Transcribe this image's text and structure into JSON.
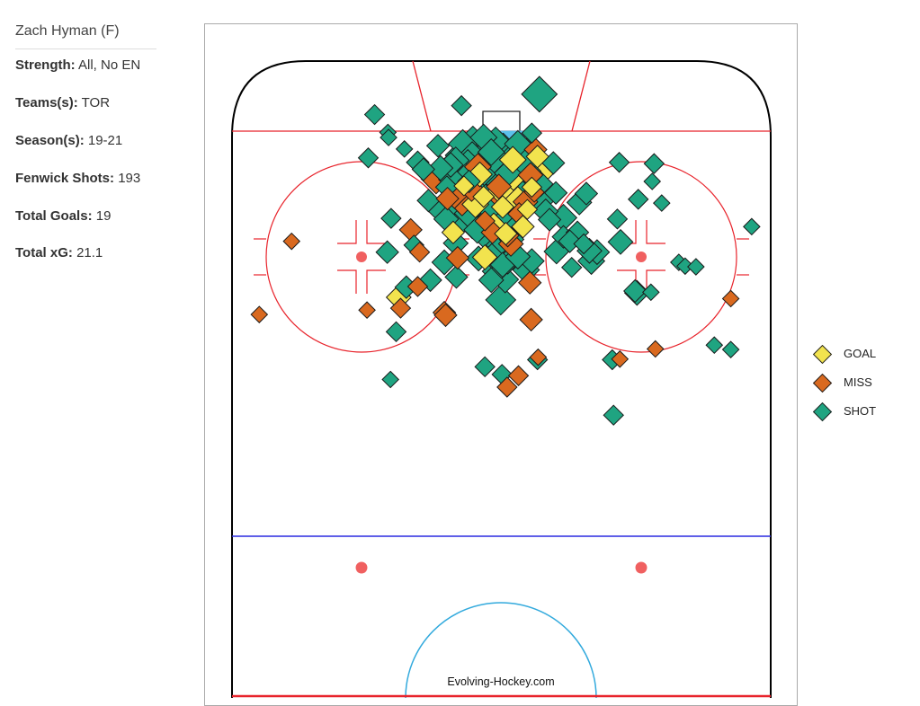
{
  "player": {
    "name": "Zach Hyman (F)"
  },
  "stats": [
    {
      "label": "Strength:",
      "value": "All, No EN"
    },
    {
      "label": "Teams(s):",
      "value": "TOR"
    },
    {
      "label": "Season(s):",
      "value": "19-21"
    },
    {
      "label": "Fenwick Shots:",
      "value": "193"
    },
    {
      "label": "Total Goals:",
      "value": "19"
    },
    {
      "label": "Total xG:",
      "value": "21.1"
    }
  ],
  "watermark": "Evolving-Hockey.com",
  "legend": [
    {
      "label": "GOAL",
      "color": "#f2e34e"
    },
    {
      "label": "MISS",
      "color": "#d9691f"
    },
    {
      "label": "SHOT",
      "color": "#1fa481"
    }
  ],
  "rink_colors": {
    "boards": "#000000",
    "goal_line": "#e8232b",
    "blue_line": "#2a2ae0",
    "crease": "#5bc0eb",
    "faceoff_dot": "#f06060",
    "center_circle": "#33aadd"
  },
  "chart_data": {
    "type": "scatter",
    "x_unit": "feet from center of rink width (-42.5 to 42.5)",
    "y_unit": "feet from end boards (0 to 100)",
    "xlim": [
      -42.5,
      42.5
    ],
    "ylim": [
      0,
      100
    ],
    "size_encodes": "expected goals",
    "series": [
      {
        "name": "GOAL",
        "points": [
          {
            "x": -2.8,
            "y": 21.3,
            "s": 0.025
          },
          {
            "x": -0.1,
            "y": 20.4,
            "s": 0.05
          },
          {
            "x": 0.2,
            "y": 22.9,
            "s": 0.03
          },
          {
            "x": 5.7,
            "y": 15.0,
            "s": 0.03
          },
          {
            "x": 6.0,
            "y": 17.4,
            "s": 0.08
          },
          {
            "x": 4.8,
            "y": 19.8,
            "s": 0.02
          },
          {
            "x": -7.6,
            "y": 26.9,
            "s": 0.03
          },
          {
            "x": -2.6,
            "y": 30.8,
            "s": 0.04
          },
          {
            "x": -16.2,
            "y": 37.1,
            "s": 0.04
          },
          {
            "x": 3.4,
            "y": 26.0,
            "s": 0.03
          },
          {
            "x": 1.4,
            "y": 18.6,
            "s": 0.06
          },
          {
            "x": -4.1,
            "y": 22.5,
            "s": 0.05
          },
          {
            "x": -1.2,
            "y": 25.8,
            "s": 0.04
          },
          {
            "x": 2.6,
            "y": 21.8,
            "s": 0.05
          },
          {
            "x": -3.4,
            "y": 17.8,
            "s": 0.04
          },
          {
            "x": 4.1,
            "y": 23.3,
            "s": 0.02
          },
          {
            "x": 0.7,
            "y": 27.1,
            "s": 0.03
          },
          {
            "x": -5.9,
            "y": 19.6,
            "s": 0.02
          },
          {
            "x": 1.8,
            "y": 15.5,
            "s": 0.05
          }
        ]
      },
      {
        "name": "MISS",
        "points": [
          {
            "x": -10.3,
            "y": 18.5,
            "s": 0.07
          },
          {
            "x": -8.5,
            "y": 21.6,
            "s": 0.03
          },
          {
            "x": -14.3,
            "y": 26.5,
            "s": 0.03
          },
          {
            "x": -12.9,
            "y": 30.0,
            "s": 0.02
          },
          {
            "x": -6.2,
            "y": 22.2,
            "s": 0.05
          },
          {
            "x": -1.4,
            "y": 26.9,
            "s": 0.03
          },
          {
            "x": 1.0,
            "y": 27.4,
            "s": 0.03
          },
          {
            "x": 1.5,
            "y": 28.7,
            "s": 0.04
          },
          {
            "x": 4.6,
            "y": 17.9,
            "s": 0.04
          },
          {
            "x": 5.4,
            "y": 13.9,
            "s": 0.03
          },
          {
            "x": 5.2,
            "y": 20.6,
            "s": 0.02
          },
          {
            "x": -2.6,
            "y": 25.1,
            "s": 0.02
          },
          {
            "x": 0.9,
            "y": 25.9,
            "s": 0.06
          },
          {
            "x": 4.5,
            "y": 34.8,
            "s": 0.03
          },
          {
            "x": -6.9,
            "y": 30.9,
            "s": 0.03
          },
          {
            "x": -13.2,
            "y": 35.4,
            "s": 0.02
          },
          {
            "x": -9.0,
            "y": 39.5,
            "s": 0.03
          },
          {
            "x": -7.4,
            "y": 21.2,
            "s": 0.04
          },
          {
            "x": -33.1,
            "y": 28.3,
            "s": 0.01
          },
          {
            "x": -38.2,
            "y": 39.8,
            "s": 0.01
          },
          {
            "x": -21.2,
            "y": 39.1,
            "s": 0.01
          },
          {
            "x": -15.9,
            "y": 38.8,
            "s": 0.02
          },
          {
            "x": -8.8,
            "y": 39.9,
            "s": 0.03
          },
          {
            "x": 5.8,
            "y": 46.5,
            "s": 0.01
          },
          {
            "x": 2.7,
            "y": 49.4,
            "s": 0.02
          },
          {
            "x": 0.9,
            "y": 51.2,
            "s": 0.02
          },
          {
            "x": 4.7,
            "y": 40.6,
            "s": 0.03
          },
          {
            "x": 18.7,
            "y": 46.8,
            "s": 0.01
          },
          {
            "x": 24.3,
            "y": 45.2,
            "s": 0.01
          },
          {
            "x": 36.2,
            "y": 37.3,
            "s": 0.01
          },
          {
            "x": -0.4,
            "y": 19.7,
            "s": 0.04
          },
          {
            "x": -3.7,
            "y": 16.6,
            "s": 0.05
          },
          {
            "x": 2.8,
            "y": 24.0,
            "s": 0.03
          },
          {
            "x": 0.1,
            "y": 21.5,
            "s": 0.05
          },
          {
            "x": -4.7,
            "y": 20.1,
            "s": 0.04
          },
          {
            "x": 3.8,
            "y": 22.1,
            "s": 0.04
          }
        ]
      },
      {
        "name": "SHOT",
        "points": [
          {
            "x": 6.0,
            "y": 5.2,
            "s": 0.11
          },
          {
            "x": -20.0,
            "y": 8.4,
            "s": 0.02
          },
          {
            "x": -6.3,
            "y": 7.0,
            "s": 0.02
          },
          {
            "x": -17.9,
            "y": 11.2,
            "s": 0.01
          },
          {
            "x": -17.8,
            "y": 12.0,
            "s": 0.01
          },
          {
            "x": -15.3,
            "y": 13.8,
            "s": 0.01
          },
          {
            "x": -2.8,
            "y": 12.0,
            "s": 0.05
          },
          {
            "x": -6.6,
            "y": 14.8,
            "s": 0.06
          },
          {
            "x": -4.5,
            "y": 12.7,
            "s": 0.08
          },
          {
            "x": -2.8,
            "y": 19.7,
            "s": 0.09
          },
          {
            "x": -1.4,
            "y": 17.9,
            "s": 0.07
          },
          {
            "x": 2.6,
            "y": 13.0,
            "s": 0.05
          },
          {
            "x": 3.2,
            "y": 15.6,
            "s": 0.06
          },
          {
            "x": -1.6,
            "y": 14.3,
            "s": 0.05
          },
          {
            "x": -5.1,
            "y": 18.9,
            "s": 0.03
          },
          {
            "x": -0.4,
            "y": 16.0,
            "s": 0.09
          },
          {
            "x": 1.0,
            "y": 17.6,
            "s": 0.05
          },
          {
            "x": -3.6,
            "y": 15.5,
            "s": 0.07
          },
          {
            "x": 0.3,
            "y": 13.8,
            "s": 0.08
          },
          {
            "x": -1.8,
            "y": 21.7,
            "s": 0.07
          },
          {
            "x": -0.6,
            "y": 20.9,
            "s": 0.1
          },
          {
            "x": 0.3,
            "y": 22.6,
            "s": 0.07
          },
          {
            "x": -13.2,
            "y": 15.9,
            "s": 0.03
          },
          {
            "x": -11.5,
            "y": 21.9,
            "s": 0.03
          },
          {
            "x": -12.3,
            "y": 17.0,
            "s": 0.03
          },
          {
            "x": -9.1,
            "y": 23.5,
            "s": 0.08
          },
          {
            "x": -4.6,
            "y": 25.4,
            "s": 0.08
          },
          {
            "x": -8.6,
            "y": 19.8,
            "s": 0.03
          },
          {
            "x": 6.2,
            "y": 21.8,
            "s": 0.06
          },
          {
            "x": 7.0,
            "y": 23.6,
            "s": 0.04
          },
          {
            "x": 8.6,
            "y": 20.7,
            "s": 0.03
          },
          {
            "x": 9.8,
            "y": 24.6,
            "s": 0.05
          },
          {
            "x": 12.3,
            "y": 22.2,
            "s": 0.04
          },
          {
            "x": 9.8,
            "y": 27.6,
            "s": 0.03
          },
          {
            "x": 12.0,
            "y": 26.9,
            "s": 0.03
          },
          {
            "x": 13.0,
            "y": 28.7,
            "s": 0.02
          },
          {
            "x": 15.1,
            "y": 30.0,
            "s": 0.04
          },
          {
            "x": 13.9,
            "y": 29.8,
            "s": 0.04
          },
          {
            "x": 14.2,
            "y": 31.4,
            "s": 0.05
          },
          {
            "x": 10.8,
            "y": 28.3,
            "s": 0.03
          },
          {
            "x": 8.7,
            "y": 29.9,
            "s": 0.04
          },
          {
            "x": 11.1,
            "y": 32.4,
            "s": 0.02
          },
          {
            "x": 18.8,
            "y": 28.4,
            "s": 0.04
          },
          {
            "x": 18.3,
            "y": 24.8,
            "s": 0.02
          },
          {
            "x": 21.6,
            "y": 21.7,
            "s": 0.02
          },
          {
            "x": 23.8,
            "y": 18.9,
            "s": 0.01
          },
          {
            "x": 18.6,
            "y": 15.9,
            "s": 0.02
          },
          {
            "x": 24.1,
            "y": 16.1,
            "s": 0.02
          },
          {
            "x": 13.4,
            "y": 20.8,
            "s": 0.03
          },
          {
            "x": 25.3,
            "y": 22.3,
            "s": 0.01
          },
          {
            "x": 28.0,
            "y": 31.6,
            "s": 0.01
          },
          {
            "x": 29.0,
            "y": 32.2,
            "s": 0.01
          },
          {
            "x": 21.4,
            "y": 36.4,
            "s": 0.04
          },
          {
            "x": 21.1,
            "y": 36.1,
            "s": 0.03
          },
          {
            "x": 23.6,
            "y": 36.3,
            "s": 0.01
          },
          {
            "x": 30.7,
            "y": 32.3,
            "s": 0.01
          },
          {
            "x": 39.5,
            "y": 26.0,
            "s": 0.01
          },
          {
            "x": 33.6,
            "y": 44.6,
            "s": 0.01
          },
          {
            "x": 36.2,
            "y": 45.3,
            "s": 0.01
          },
          {
            "x": 17.5,
            "y": 46.9,
            "s": 0.02
          },
          {
            "x": 17.7,
            "y": 55.6,
            "s": 0.02
          },
          {
            "x": 5.7,
            "y": 46.9,
            "s": 0.02
          },
          {
            "x": 0.1,
            "y": 49.2,
            "s": 0.02
          },
          {
            "x": -2.6,
            "y": 48.0,
            "s": 0.02
          },
          {
            "x": -17.5,
            "y": 50.0,
            "s": 0.01
          },
          {
            "x": -16.6,
            "y": 42.5,
            "s": 0.02
          },
          {
            "x": -7.2,
            "y": 28.6,
            "s": 0.04
          },
          {
            "x": -9.0,
            "y": 31.6,
            "s": 0.04
          },
          {
            "x": -3.6,
            "y": 31.0,
            "s": 0.04
          },
          {
            "x": -1.6,
            "y": 34.4,
            "s": 0.04
          },
          {
            "x": -7.1,
            "y": 33.9,
            "s": 0.03
          },
          {
            "x": -11.2,
            "y": 34.4,
            "s": 0.03
          },
          {
            "x": -13.8,
            "y": 28.9,
            "s": 0.02
          },
          {
            "x": -15.0,
            "y": 35.5,
            "s": 0.03
          },
          {
            "x": -18.0,
            "y": 30.0,
            "s": 0.03
          },
          {
            "x": -17.4,
            "y": 24.7,
            "s": 0.02
          },
          {
            "x": -0.1,
            "y": 37.5,
            "s": 0.07
          },
          {
            "x": 0.9,
            "y": 30.2,
            "s": 0.05
          },
          {
            "x": 1.0,
            "y": 31.5,
            "s": 0.04
          },
          {
            "x": -1.8,
            "y": 28.2,
            "s": 0.05
          },
          {
            "x": 3.9,
            "y": 32.8,
            "s": 0.05
          },
          {
            "x": 4.8,
            "y": 31.4,
            "s": 0.04
          },
          {
            "x": 7.6,
            "y": 24.9,
            "s": 0.03
          },
          {
            "x": 8.2,
            "y": 16.0,
            "s": 0.03
          },
          {
            "x": 4.8,
            "y": 11.3,
            "s": 0.02
          },
          {
            "x": -21.0,
            "y": 15.2,
            "s": 0.02
          },
          {
            "x": -8.0,
            "y": 16.3,
            "s": 0.04
          },
          {
            "x": -4.9,
            "y": 22.3,
            "s": 0.06
          },
          {
            "x": -4.0,
            "y": 19.0,
            "s": 0.08
          },
          {
            "x": -3.4,
            "y": 23.8,
            "s": 0.07
          },
          {
            "x": -2.0,
            "y": 16.5,
            "s": 0.07
          },
          {
            "x": -1.0,
            "y": 19.4,
            "s": 0.09
          },
          {
            "x": 2.0,
            "y": 18.9,
            "s": 0.08
          },
          {
            "x": 4.0,
            "y": 17.3,
            "s": 0.06
          },
          {
            "x": 4.5,
            "y": 14.0,
            "s": 0.07
          },
          {
            "x": 1.1,
            "y": 15.9,
            "s": 0.07
          },
          {
            "x": -0.9,
            "y": 12.6,
            "s": 0.06
          },
          {
            "x": -2.5,
            "y": 14.4,
            "s": 0.06
          },
          {
            "x": -5.3,
            "y": 16.0,
            "s": 0.05
          },
          {
            "x": -6.1,
            "y": 13.0,
            "s": 0.06
          },
          {
            "x": -5.6,
            "y": 18.1,
            "s": 0.05
          },
          {
            "x": -7.2,
            "y": 15.6,
            "s": 0.05
          },
          {
            "x": -9.6,
            "y": 16.8,
            "s": 0.04
          },
          {
            "x": -10.0,
            "y": 13.3,
            "s": 0.03
          },
          {
            "x": -8.7,
            "y": 24.8,
            "s": 0.04
          },
          {
            "x": -6.9,
            "y": 25.7,
            "s": 0.05
          },
          {
            "x": -2.1,
            "y": 23.5,
            "s": 0.06
          },
          {
            "x": 1.1,
            "y": 24.4,
            "s": 0.05
          },
          {
            "x": 2.4,
            "y": 20.1,
            "s": 0.06
          },
          {
            "x": 3.1,
            "y": 22.3,
            "s": 0.05
          },
          {
            "x": 2.0,
            "y": 26.3,
            "s": 0.04
          },
          {
            "x": -0.5,
            "y": 28.9,
            "s": 0.04
          },
          {
            "x": -1.5,
            "y": 30.6,
            "s": 0.04
          },
          {
            "x": 0.2,
            "y": 32.0,
            "s": 0.04
          },
          {
            "x": 0.6,
            "y": 34.3,
            "s": 0.05
          },
          {
            "x": -0.9,
            "y": 33.0,
            "s": 0.05
          },
          {
            "x": 2.6,
            "y": 30.7,
            "s": 0.04
          },
          {
            "x": 6.2,
            "y": 19.3,
            "s": 0.04
          },
          {
            "x": -3.3,
            "y": 20.9,
            "s": 0.07
          },
          {
            "x": -0.1,
            "y": 18.2,
            "s": 0.08
          },
          {
            "x": 0.8,
            "y": 16.9,
            "s": 0.07
          },
          {
            "x": 3.6,
            "y": 16.0,
            "s": 0.06
          },
          {
            "x": -4.6,
            "y": 14.9,
            "s": 0.06
          },
          {
            "x": -7.8,
            "y": 18.6,
            "s": 0.05
          },
          {
            "x": -2.7,
            "y": 17.2,
            "s": 0.07
          },
          {
            "x": -1.1,
            "y": 15.2,
            "s": 0.07
          },
          {
            "x": 1.5,
            "y": 21.2,
            "s": 0.07
          },
          {
            "x": -5.3,
            "y": 23.9,
            "s": 0.05
          },
          {
            "x": -3.8,
            "y": 26.5,
            "s": 0.05
          },
          {
            "x": -0.7,
            "y": 26.7,
            "s": 0.05
          },
          {
            "x": 1.6,
            "y": 28.0,
            "s": 0.04
          },
          {
            "x": -6.0,
            "y": 21.0,
            "s": 0.05
          }
        ]
      }
    ]
  }
}
